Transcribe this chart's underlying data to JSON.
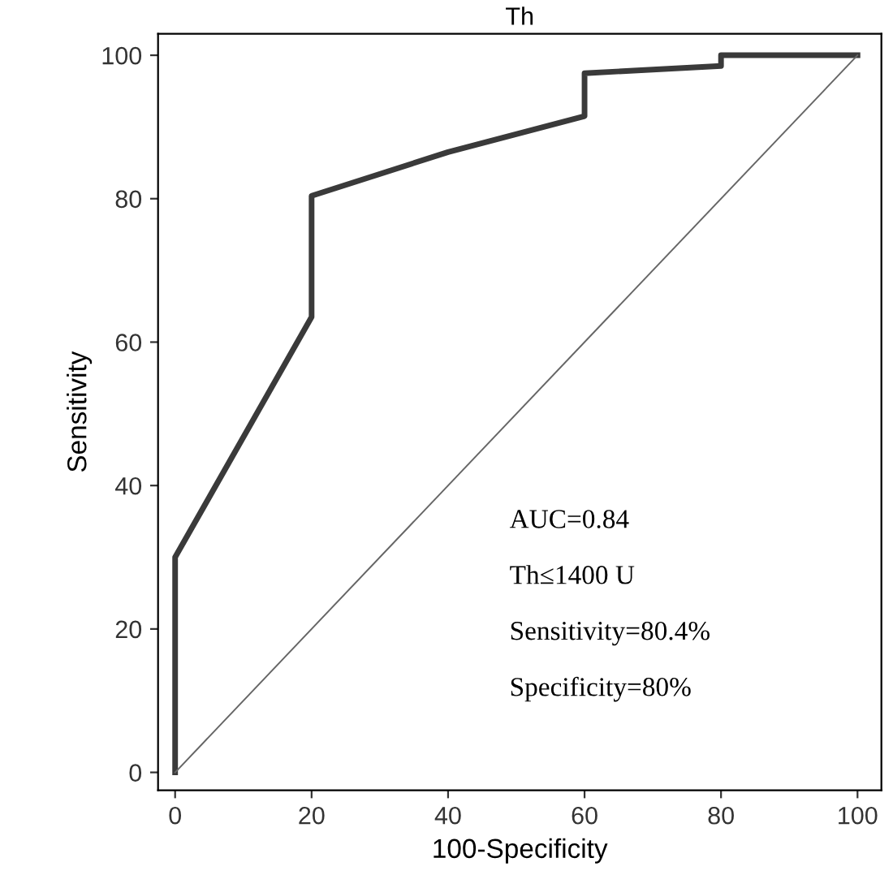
{
  "chart_data": {
    "type": "line",
    "title": "Th",
    "xlabel": "100-Specificity",
    "ylabel": "Sensitivity",
    "xlim": [
      -2.5,
      103.5
    ],
    "ylim": [
      -2.5,
      103
    ],
    "xticks": [
      0,
      20,
      40,
      60,
      80,
      100
    ],
    "yticks": [
      0,
      20,
      40,
      60,
      80,
      100
    ],
    "grid": false,
    "legend": false,
    "series": [
      {
        "color": "#3a3a3a",
        "line_style": "solid",
        "x": [
          0,
          0,
          20,
          20,
          40,
          60,
          60,
          80,
          80,
          100
        ],
        "values": [
          0,
          30,
          63.5,
          80.4,
          86.5,
          91.5,
          97.5,
          98.5,
          100,
          100
        ]
      },
      {
        "color": "#666666",
        "line_style": "solid",
        "x": [
          0,
          100
        ],
        "values": [
          0,
          100
        ]
      }
    ],
    "annotations": [
      "AUC=0.84",
      "Th≤1400 U",
      "Sensitivity=80.4%",
      "Specificity=80%"
    ]
  }
}
